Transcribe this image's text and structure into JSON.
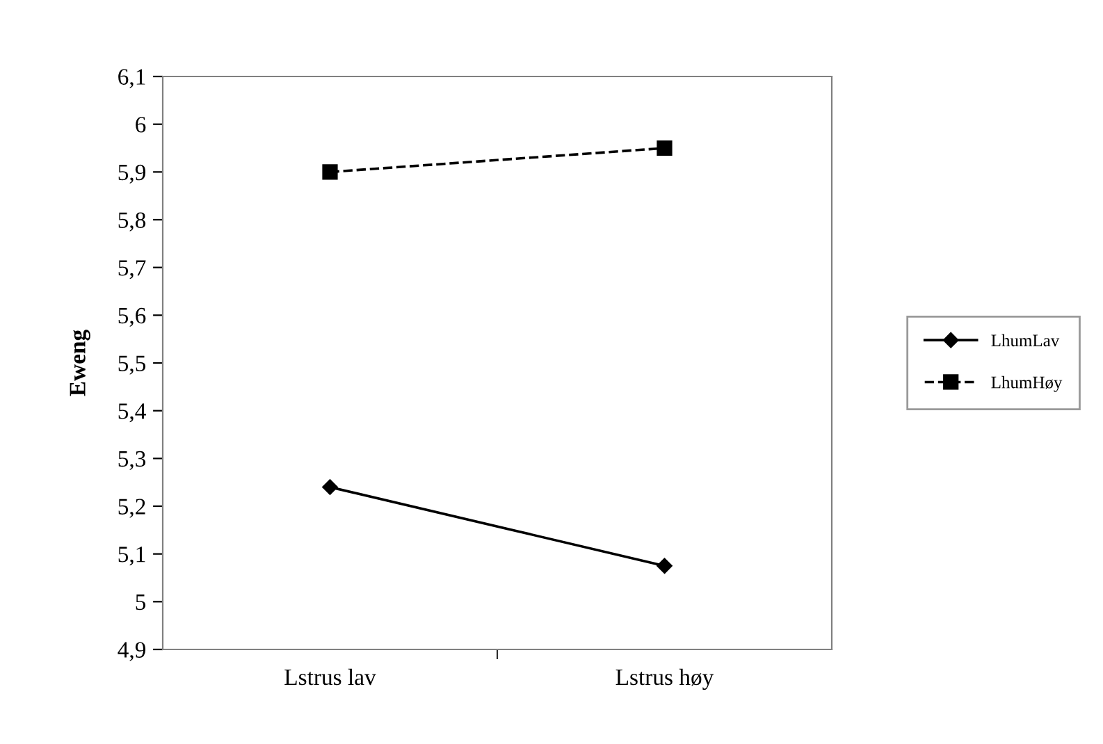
{
  "chart_data": {
    "type": "line",
    "ylabel": "Eweng",
    "categories": [
      "Lstrus lav",
      "Lstrus høy"
    ],
    "series": [
      {
        "name": "LhumLav",
        "color": "#000000",
        "values": [
          5.24,
          5.075
        ],
        "marker": "diamond",
        "line_style": "solid"
      },
      {
        "name": "LhumHøy",
        "color": "#000000",
        "values": [
          5.9,
          5.95
        ],
        "marker": "square",
        "line_style": "dashed"
      }
    ],
    "ylim": [
      4.9,
      6.1
    ],
    "yticks": [
      {
        "value": 4.9,
        "label": "4,9"
      },
      5,
      {
        "value": 5.1,
        "label": "5,1"
      },
      {
        "value": 5.2,
        "label": "5,2"
      },
      {
        "value": 5.3,
        "label": "5,3"
      },
      {
        "value": 5.4,
        "label": "5,4"
      },
      {
        "value": 5.5,
        "label": "5,5"
      },
      {
        "value": 5.6,
        "label": "5,6"
      },
      {
        "value": 5.7,
        "label": "5,7"
      },
      {
        "value": 5.8,
        "label": "5,8"
      },
      {
        "value": 5.9,
        "label": "5,9"
      },
      6,
      {
        "value": 6.1,
        "label": "6,1"
      }
    ],
    "grid": false,
    "legend": "right"
  }
}
